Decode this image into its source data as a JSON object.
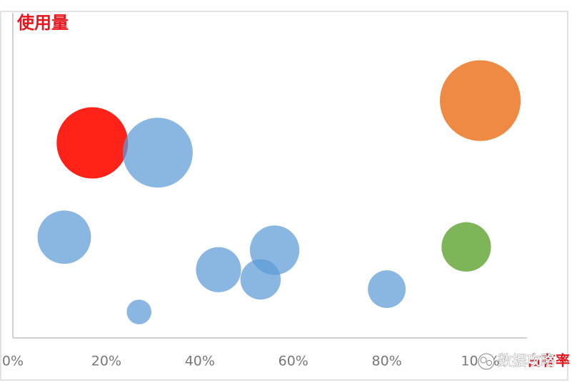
{
  "chart_data": {
    "type": "bubble",
    "y_label": "使用量",
    "x_label": "占有率",
    "watermark": "数据攻略",
    "x": [
      17,
      31,
      100,
      11,
      97,
      56,
      44,
      53,
      80,
      27
    ],
    "values": [
      60,
      57,
      73,
      31,
      28,
      27,
      21,
      18,
      15,
      8
    ],
    "sizes": [
      25,
      24,
      32,
      14,
      12,
      12,
      10,
      8,
      7,
      3
    ],
    "colors": [
      "#ff0a00",
      "#5b9bd5",
      "#ed7d31",
      "#5b9bd5",
      "#70ad47",
      "#5b9bd5",
      "#5b9bd5",
      "#5b9bd5",
      "#5b9bd5",
      "#5b9bd5"
    ],
    "xlim": [
      0,
      110
    ],
    "ylim": [
      0,
      100
    ],
    "xticks": [
      {
        "value": 0,
        "label": "0%"
      },
      {
        "value": 20,
        "label": "20%"
      },
      {
        "value": 40,
        "label": "40%"
      },
      {
        "value": 60,
        "label": "60%"
      },
      {
        "value": 80,
        "label": "80%"
      },
      {
        "value": 100,
        "label": "100%"
      }
    ]
  }
}
